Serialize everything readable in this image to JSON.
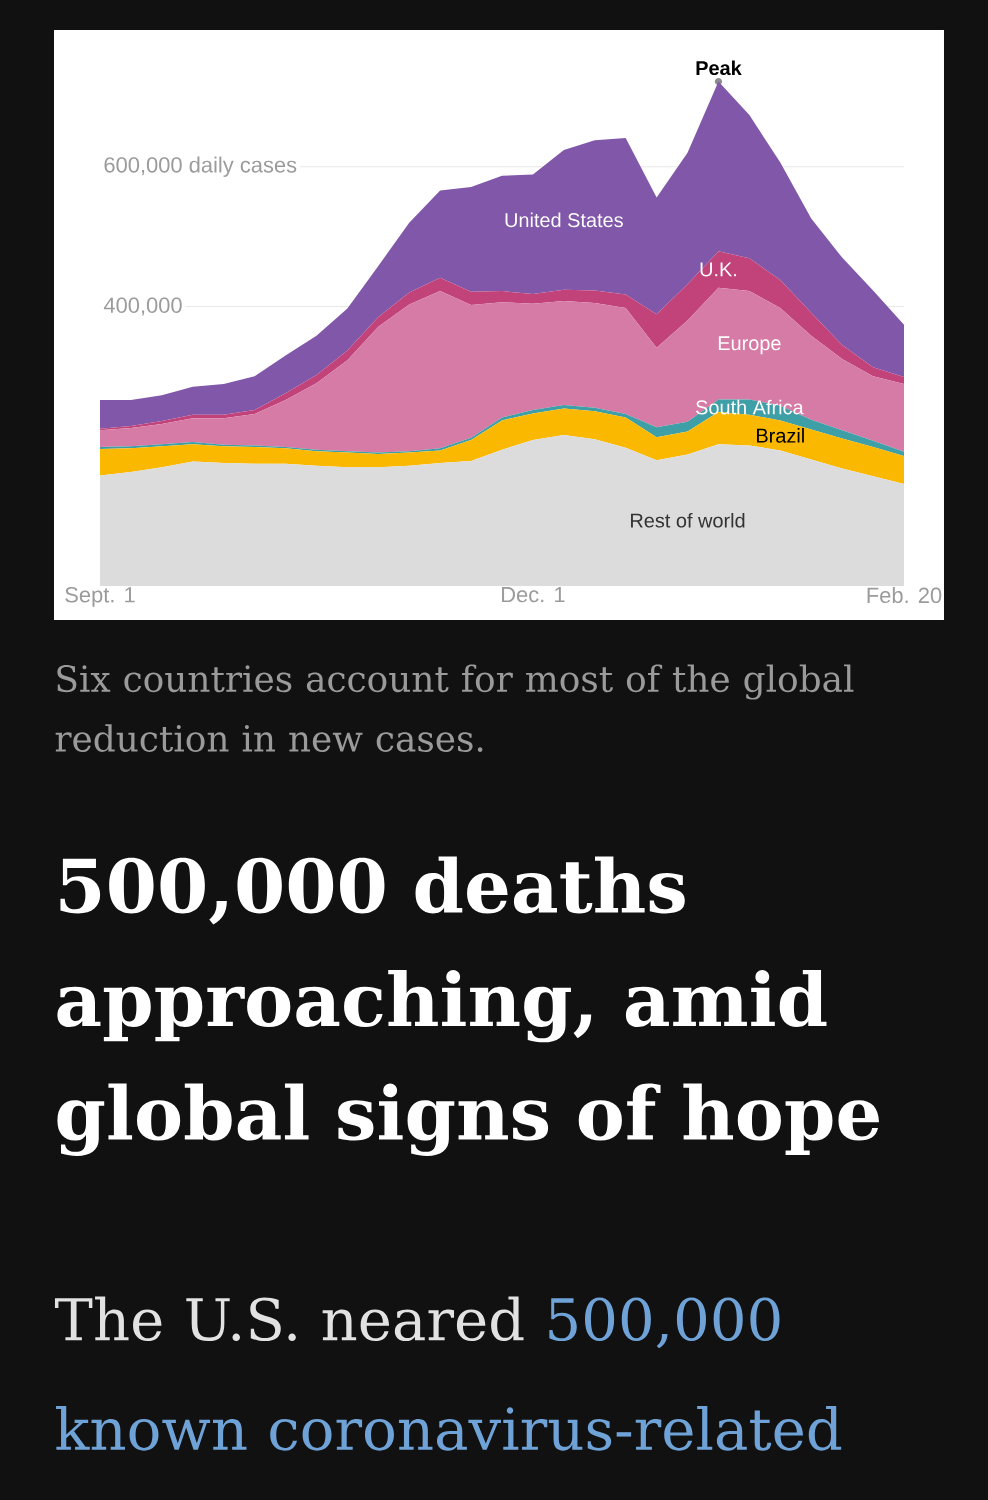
{
  "chart_data": {
    "type": "area",
    "stacked": true,
    "title": "500,000 deaths approaching, amid global signs of hope",
    "annotations": [
      {
        "text": "Peak",
        "y": 722000
      },
      "Six countries account for most of the global reduction in new cases.",
      "The U.S. neared",
      "500,000 known coronavirus-related"
    ],
    "categories": [
      "Sept. 1",
      null,
      null,
      null,
      null,
      null,
      null,
      null,
      null,
      null,
      null,
      null,
      null,
      null,
      "Dec. 1",
      null,
      null,
      null,
      null,
      null,
      null,
      null,
      null,
      null,
      null,
      null,
      "Feb. 20"
    ],
    "ylim": [
      0,
      790000
    ],
    "yticks": [
      {
        "value": 400000,
        "label": "400,000"
      },
      {
        "value": 600000,
        "label": "600,000 daily cases"
      }
    ],
    "grid": "y",
    "series": [
      {
        "name": "Rest of world",
        "color": "#dcdcdc",
        "values": [
          158000,
          163000,
          170000,
          178000,
          176000,
          175000,
          175000,
          172000,
          170000,
          170000,
          172000,
          176000,
          179000,
          195000,
          209000,
          216000,
          210000,
          198000,
          180000,
          188000,
          203000,
          201000,
          194000,
          181000,
          168000,
          157000,
          146000
        ]
      },
      {
        "name": "Brazil",
        "color": "#fbb800",
        "values": [
          38000,
          34000,
          30000,
          25000,
          24000,
          24000,
          22000,
          21000,
          21000,
          19000,
          19000,
          18000,
          30000,
          42000,
          38000,
          38000,
          40000,
          43000,
          33000,
          33000,
          46000,
          44000,
          43000,
          43000,
          43000,
          42000,
          40000
        ]
      },
      {
        "name": "South Africa",
        "color": "#3f9fa6",
        "values": [
          3000,
          3000,
          3000,
          3000,
          2000,
          2000,
          2000,
          2000,
          2000,
          2000,
          2000,
          3000,
          3000,
          4000,
          5000,
          5000,
          5000,
          5000,
          14000,
          14000,
          18000,
          22000,
          21000,
          14000,
          12000,
          9000,
          6000
        ]
      },
      {
        "name": "Europe",
        "color": "#d67ba6",
        "values": [
          24000,
          26000,
          29000,
          34000,
          38000,
          45000,
          67000,
          95000,
          130000,
          180000,
          210000,
          225000,
          190000,
          165000,
          152000,
          149000,
          150000,
          152000,
          114000,
          145000,
          160000,
          155000,
          140000,
          120000,
          102000,
          92000,
          97000
        ]
      },
      {
        "name": "U.K.",
        "color": "#c2437a",
        "values": [
          2000,
          3000,
          4000,
          5000,
          5000,
          6000,
          10000,
          12000,
          14000,
          14000,
          17000,
          19000,
          19000,
          16000,
          14000,
          16000,
          18000,
          19000,
          48000,
          52000,
          52000,
          47000,
          40000,
          33000,
          20000,
          13000,
          10000
        ]
      },
      {
        "name": "United States",
        "color": "#8157aa",
        "values": [
          41000,
          37000,
          37000,
          40000,
          44000,
          48000,
          54000,
          56000,
          60000,
          73000,
          100000,
          125000,
          150000,
          165000,
          171000,
          200000,
          215000,
          224000,
          167000,
          188000,
          243000,
          205000,
          168000,
          135000,
          125000,
          110000,
          75000
        ]
      }
    ]
  }
}
